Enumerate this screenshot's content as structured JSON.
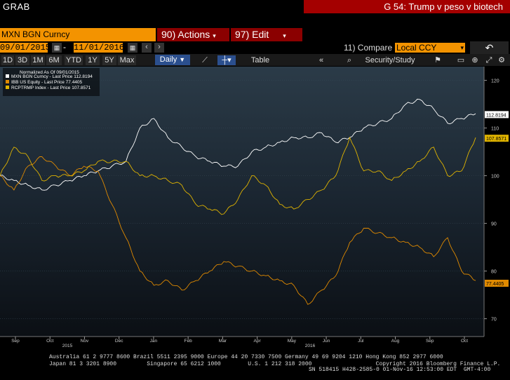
{
  "app": {
    "grab": "GRAB"
  },
  "header": {
    "ticker": "MXN BGN Curncy",
    "actions": "90) Actions",
    "edit": "97) Edit",
    "title": "G 54: Trump v peso v biotech"
  },
  "dates": {
    "start": "09/01/2015",
    "end": "11/01/2016",
    "dash": "-"
  },
  "compare": {
    "label": "11) Compare",
    "value": "Local CCY"
  },
  "toolbar": {
    "ranges": [
      "1D",
      "3D",
      "1M",
      "6M",
      "YTD",
      "1Y",
      "5Y",
      "Max"
    ],
    "frequency": "Daily",
    "table": "Table",
    "security_study": "Security/Study"
  },
  "legend": {
    "header": "Normalized As Of 09/01/2015",
    "items": [
      {
        "text": "MXN BGN Curncy - Last Price  112.8194",
        "color": "#ffffff"
      },
      {
        "text": "IBB US Equity - Last Price    77.4405",
        "color": "#e08a00"
      },
      {
        "text": "RCPTRMP Index - Last Price  107.8571",
        "color": "#e0b400"
      }
    ]
  },
  "chart_data": {
    "type": "line",
    "x_ticks": [
      "Sep",
      "Oct",
      "Nov",
      "Dec",
      "Jan",
      "Feb",
      "Mar",
      "Apr",
      "May",
      "Jun",
      "Jul",
      "Aug",
      "Sep",
      "Oct"
    ],
    "years": [
      "2015",
      "2016"
    ],
    "y_ticks": [
      70,
      80,
      90,
      100,
      110,
      120
    ],
    "ylim": [
      67,
      122
    ],
    "last_labels": [
      {
        "value": 112.8194,
        "text": "112.8194",
        "color": "#ffffff",
        "bg": "#ffffff",
        "fg": "#000"
      },
      {
        "value": 107.8571,
        "text": "107.8571",
        "color": "#e0b400",
        "bg": "#e0b400",
        "fg": "#000"
      },
      {
        "value": 77.4405,
        "text": "77.4405",
        "color": "#e08a00",
        "bg": "#e08a00",
        "fg": "#000"
      }
    ],
    "series": [
      {
        "name": "MXN BGN Curncy",
        "color": "#ffffff",
        "values": [
          100,
          99,
          98,
          97,
          98,
          99,
          100,
          101,
          102,
          103,
          110,
          112,
          108,
          106,
          104,
          103,
          102,
          102,
          105,
          106,
          107,
          108,
          108,
          109,
          107,
          108,
          110,
          111,
          112,
          115,
          116,
          114,
          111,
          112,
          113
        ]
      },
      {
        "name": "IBB US Equity",
        "color": "#e08a00",
        "values": [
          100,
          97,
          102,
          104,
          102,
          100,
          102,
          101,
          94,
          87,
          80,
          77,
          78,
          76,
          78,
          80,
          82,
          81,
          80,
          79,
          78,
          77,
          73,
          76,
          79,
          86,
          89,
          88,
          87,
          86,
          85,
          83,
          87,
          80,
          78
        ]
      },
      {
        "name": "RCPTRMP Index",
        "color": "#e0b400",
        "values": [
          100,
          106,
          104,
          99,
          100,
          100,
          101,
          103,
          103,
          103,
          100,
          100,
          99,
          98,
          94,
          93,
          92,
          95,
          100,
          98,
          94,
          93,
          95,
          97,
          100,
          108,
          101,
          101,
          99,
          101,
          103,
          106,
          100,
          101,
          108
        ]
      }
    ]
  },
  "footer": {
    "line1": "Australia 61 2 9777 8600 Brazil 5511 2395 9000 Europe 44 20 7330 7500 Germany 49 69 9204 1210 Hong Kong 852 2977 6000",
    "line2": "Japan 81 3 3201 8900         Singapore 65 6212 1000        U.S. 1 212 318 2000                   Copyright 2016 Bloomberg Finance L.P.",
    "line3": "SN 518415 H428-2585-0 01-Nov-16 12:53:00 EDT  GMT-4:00"
  }
}
